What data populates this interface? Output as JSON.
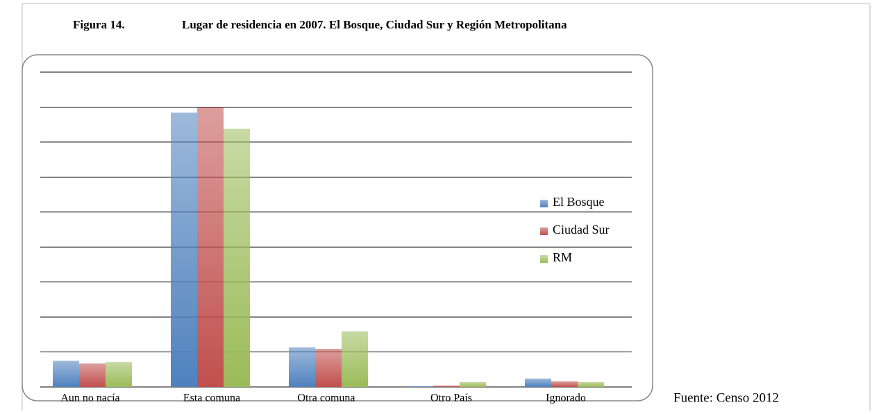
{
  "figure_label": "Figura 14.",
  "source": "Fuente: Censo 2012",
  "chart_data": {
    "type": "bar",
    "title": "Lugar de residencia en 2007. El Bosque, Ciudad Sur y Región Metropolitana",
    "categories": [
      "Aun no nacía",
      "Esta comuna",
      "Otra comuna",
      "Otro País",
      "Ignorado"
    ],
    "series": [
      {
        "name": "El Bosque",
        "color": "#4f81bd",
        "values": [
          7.5,
          78.4,
          11.3,
          0.2,
          2.4
        ]
      },
      {
        "name": "Ciudad Sur",
        "color": "#c0504d",
        "values": [
          6.7,
          80,
          10.9,
          0.4,
          1.6
        ]
      },
      {
        "name": "RM",
        "color": "#9bbb59",
        "values": [
          7.1,
          73.8,
          15.9,
          1.4,
          1.4
        ]
      }
    ],
    "ylim": [
      0,
      90
    ],
    "yticks": [
      0,
      10,
      20,
      30,
      40,
      50,
      60,
      70,
      80,
      90
    ],
    "grid": true,
    "legend": "right"
  }
}
